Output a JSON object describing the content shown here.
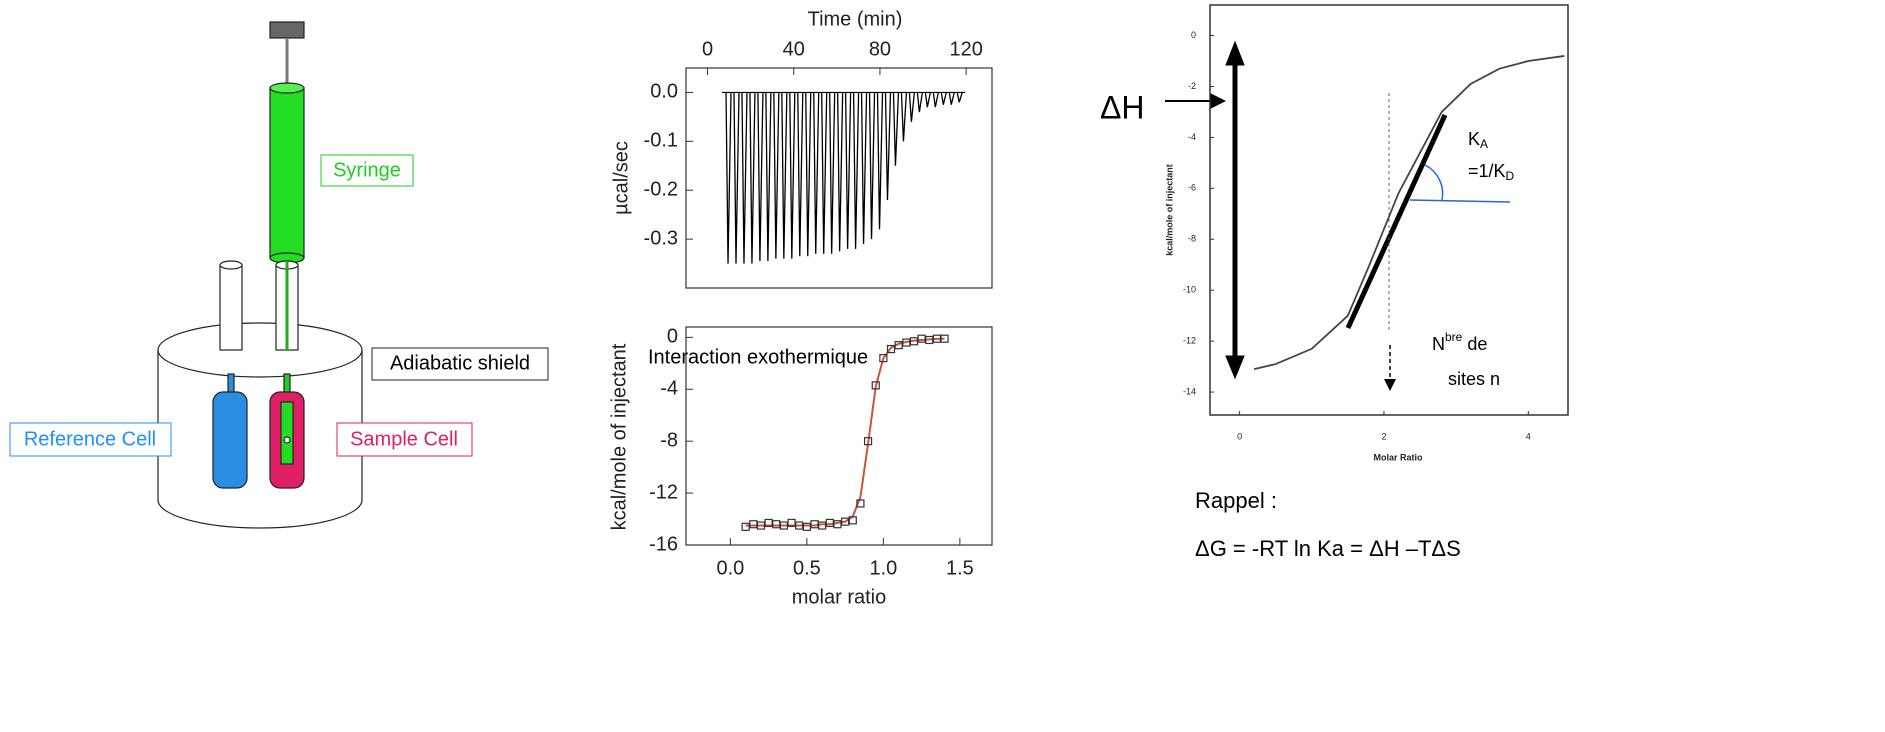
{
  "diagram": {
    "labels": {
      "syringe": "Syringe",
      "adiabatic_shield": "Adiabatic shield",
      "reference_cell": "Reference Cell",
      "sample_cell": "Sample Cell"
    }
  },
  "chart_data": [
    {
      "type": "thermogram",
      "x_label": "Time (min)",
      "y_label": "µcal/sec",
      "xlim": [
        -10,
        132
      ],
      "xticks": [
        0,
        40,
        80,
        120
      ],
      "ylim": [
        -0.4,
        0.05
      ],
      "yticks": [
        {
          "value": 0,
          "label": "0.0"
        },
        -0.1,
        -0.2,
        -0.3
      ],
      "color": "#000000",
      "x": [
        9.5,
        13.2,
        16.9,
        20.6,
        24.3,
        28,
        31.7,
        35.4,
        39.1,
        42.8,
        46.5,
        50.2,
        53.9,
        57.6,
        61.3,
        65,
        68.7,
        72.4,
        76.1,
        79.8,
        83.5,
        87.2,
        90.9,
        94.6,
        98.3,
        102,
        105.7,
        109.4,
        113.1,
        116.8
      ],
      "values": [
        -0.35,
        -0.35,
        -0.35,
        -0.35,
        -0.345,
        -0.345,
        -0.34,
        -0.34,
        -0.34,
        -0.335,
        -0.335,
        -0.33,
        -0.33,
        -0.33,
        -0.325,
        -0.32,
        -0.32,
        -0.31,
        -0.3,
        -0.28,
        -0.22,
        -0.15,
        -0.1,
        -0.06,
        -0.04,
        -0.03,
        -0.03,
        -0.025,
        -0.025,
        -0.02
      ]
    },
    {
      "type": "scatter",
      "x_label": "molar ratio",
      "y_label": "kcal/mole of injectant",
      "annotation": "Interaction exothermique",
      "xlim": [
        -0.29,
        1.71
      ],
      "xticks": [
        {
          "value": 0,
          "label": "0.0"
        },
        0.5,
        {
          "value": 1,
          "label": "1.0"
        },
        1.5
      ],
      "ylim": [
        -16,
        0.8
      ],
      "yticks": [
        0,
        -4,
        -8,
        -12,
        -16
      ],
      "x": [
        0.1,
        0.15,
        0.2,
        0.25,
        0.3,
        0.35,
        0.4,
        0.45,
        0.5,
        0.55,
        0.6,
        0.65,
        0.7,
        0.75,
        0.8,
        0.85,
        0.9,
        0.95,
        1.0,
        1.05,
        1.1,
        1.15,
        1.2,
        1.25,
        1.3,
        1.35,
        1.4
      ],
      "series": [
        {
          "color": "#333333",
          "values": [
            -14.6,
            -14.4,
            -14.5,
            -14.3,
            -14.4,
            -14.5,
            -14.3,
            -14.5,
            -14.6,
            -14.4,
            -14.5,
            -14.3,
            -14.4,
            -14.2,
            -14.1,
            -12.8,
            -8.0,
            -3.7,
            -1.6,
            -0.9,
            -0.6,
            -0.4,
            -0.3,
            -0.1,
            -0.2,
            -0.1,
            -0.1
          ]
        },
        {
          "color": "#c8553d",
          "values": [
            -14.5,
            -14.5,
            -14.5,
            -14.5,
            -14.5,
            -14.5,
            -14.5,
            -14.5,
            -14.5,
            -14.5,
            -14.4,
            -14.4,
            -14.3,
            -14.2,
            -13.8,
            -12.3,
            -8.2,
            -3.8,
            -1.6,
            -0.8,
            -0.5,
            -0.35,
            -0.25,
            -0.2,
            -0.15,
            -0.12,
            -0.1
          ]
        }
      ]
    },
    {
      "type": "line",
      "x_label": "Molar Ratio",
      "y_label": "kcal/mole of injectant",
      "xlim": [
        -0.41,
        4.55
      ],
      "xticks": [
        0,
        2,
        4
      ],
      "ylim": [
        -14.9,
        1.2
      ],
      "yticks": [
        0,
        -2,
        -4,
        -6,
        -8,
        -10,
        -12,
        -14
      ],
      "color": "#444444",
      "x": [
        0.2,
        0.5,
        1.0,
        1.5,
        1.8,
        2.0,
        2.2,
        2.5,
        2.8,
        3.2,
        3.6,
        4.0,
        4.5
      ],
      "values": [
        -13.1,
        -12.9,
        -12.3,
        -11.0,
        -9.0,
        -7.6,
        -6.2,
        -4.6,
        -3.0,
        -1.9,
        -1.3,
        -1.0,
        -0.8
      ],
      "annotations": {
        "delta_h": "ΔH",
        "ka": "K",
        "ka_sub": "A",
        "kd_prefix": "=1/K",
        "kd_sub": "D",
        "sites_n": "N",
        "sites_sup": "bre",
        "sites_rest": " de",
        "sites_line2": "sites n"
      }
    }
  ],
  "recall": {
    "title": "Rappel :",
    "formula": "ΔG = -RT ln Ka = ΔH –TΔS"
  }
}
